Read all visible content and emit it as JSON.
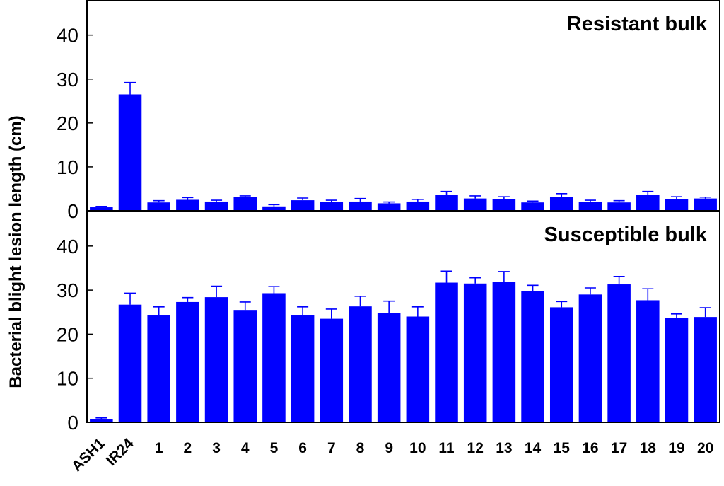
{
  "chart_data": {
    "type": "bar",
    "ylabel": "Bacterial blight lesion length (cm)",
    "ylim": [
      0,
      48
    ],
    "yticks": [
      0,
      10,
      20,
      30,
      40
    ],
    "categories": [
      "ASH1",
      "IR24",
      "1",
      "2",
      "3",
      "4",
      "5",
      "6",
      "7",
      "8",
      "9",
      "10",
      "11",
      "12",
      "13",
      "14",
      "15",
      "16",
      "17",
      "18",
      "19",
      "20"
    ],
    "bar_color": "#0000ff",
    "panels": [
      {
        "title": "Resistant bulk",
        "values": [
          0.8,
          26.5,
          1.9,
          2.5,
          2.1,
          3.1,
          1.0,
          2.4,
          2.0,
          2.1,
          1.7,
          2.1,
          3.6,
          2.8,
          2.6,
          1.9,
          3.1,
          2.0,
          1.9,
          3.6,
          2.7,
          2.8
        ],
        "errors": [
          0.2,
          2.7,
          0.4,
          0.5,
          0.3,
          0.3,
          0.4,
          0.5,
          0.4,
          0.7,
          0.3,
          0.5,
          0.8,
          0.6,
          0.6,
          0.3,
          0.8,
          0.4,
          0.4,
          0.8,
          0.5,
          0.3
        ]
      },
      {
        "title": "Susceptible bulk",
        "values": [
          0.8,
          26.7,
          24.4,
          27.3,
          28.4,
          25.5,
          29.3,
          24.4,
          23.5,
          26.3,
          24.8,
          24.0,
          31.7,
          31.5,
          31.9,
          29.7,
          26.1,
          29.0,
          31.3,
          27.7,
          23.6,
          23.9
        ],
        "errors": [
          0.2,
          2.6,
          1.8,
          1.0,
          2.5,
          1.8,
          1.5,
          1.8,
          2.2,
          2.3,
          2.7,
          2.2,
          2.6,
          1.3,
          2.3,
          1.4,
          1.3,
          1.5,
          1.8,
          2.6,
          1.0,
          2.1
        ]
      }
    ]
  }
}
